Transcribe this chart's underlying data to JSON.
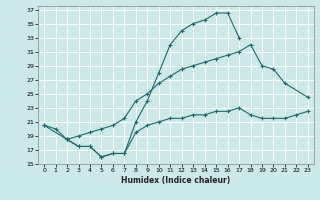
{
  "title": "",
  "xlabel": "Humidex (Indice chaleur)",
  "bg_color": "#cce9e9",
  "grid_color": "#ffffff",
  "line_color": "#1a6b6b",
  "xlim": [
    -0.5,
    23.5
  ],
  "ylim": [
    15,
    37.5
  ],
  "xticks": [
    0,
    1,
    2,
    3,
    4,
    5,
    6,
    7,
    8,
    9,
    10,
    11,
    12,
    13,
    14,
    15,
    16,
    17,
    18,
    19,
    20,
    21,
    22,
    23
  ],
  "yticks": [
    15,
    17,
    19,
    21,
    23,
    25,
    27,
    29,
    31,
    33,
    35,
    37
  ],
  "curve1_x": [
    0,
    1,
    2,
    3,
    4,
    5,
    6,
    7,
    8,
    9,
    10,
    11,
    12,
    13,
    14,
    15,
    16,
    17
  ],
  "curve1_y": [
    20.5,
    20.0,
    18.5,
    17.5,
    17.5,
    16.0,
    16.5,
    16.5,
    21.0,
    24.0,
    28.0,
    32.0,
    34.0,
    35.0,
    35.5,
    36.5,
    36.5,
    33.0
  ],
  "curve2_x": [
    0,
    2,
    3,
    4,
    5,
    6,
    7,
    8,
    9,
    10,
    11,
    12,
    13,
    14,
    15,
    16,
    17,
    18,
    19,
    20,
    21,
    23
  ],
  "curve2_y": [
    20.5,
    18.5,
    19.0,
    19.5,
    20.0,
    20.5,
    21.5,
    24.0,
    25.0,
    26.5,
    27.5,
    28.5,
    29.0,
    29.5,
    30.0,
    30.5,
    31.0,
    32.0,
    29.0,
    28.5,
    26.5,
    24.5
  ],
  "curve3_x": [
    2,
    3,
    4,
    5,
    6,
    7,
    8,
    9,
    10,
    11,
    12,
    13,
    14,
    15,
    16,
    17,
    18,
    19,
    20,
    21,
    22,
    23
  ],
  "curve3_y": [
    18.5,
    17.5,
    17.5,
    16.0,
    16.5,
    16.5,
    19.5,
    20.5,
    21.0,
    21.5,
    21.5,
    22.0,
    22.0,
    22.5,
    22.5,
    23.0,
    22.0,
    21.5,
    21.5,
    21.5,
    22.0,
    22.5
  ]
}
